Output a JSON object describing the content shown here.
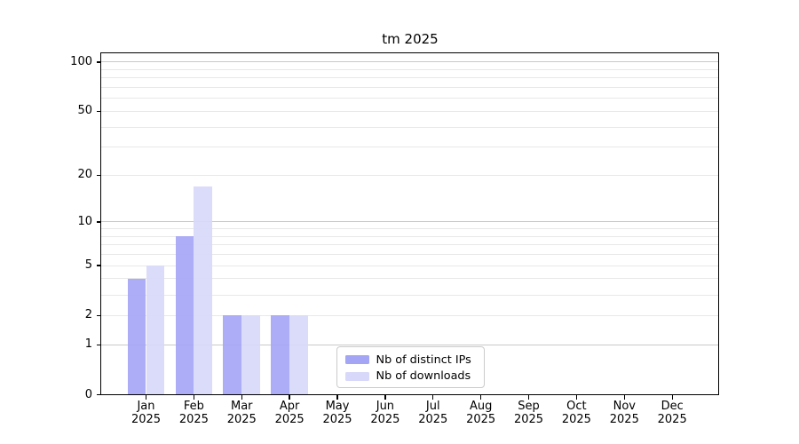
{
  "title": "tm 2025",
  "chart_data": {
    "type": "bar",
    "title": "tm 2025",
    "yscale": "log1p",
    "ylim": [
      0,
      113
    ],
    "grid": true,
    "legend_position": "lower center",
    "categories": [
      "Jan 2025",
      "Feb 2025",
      "Mar 2025",
      "Apr 2025",
      "May 2025",
      "Jun 2025",
      "Jul 2025",
      "Aug 2025",
      "Sep 2025",
      "Oct 2025",
      "Nov 2025",
      "Dec 2025"
    ],
    "yticks": [
      0,
      1,
      2,
      5,
      10,
      20,
      50,
      100
    ],
    "major_gridlines": [
      1,
      10,
      100
    ],
    "minor_gridlines": [
      2,
      3,
      4,
      5,
      6,
      7,
      8,
      9,
      20,
      30,
      40,
      50,
      60,
      70,
      80,
      90
    ],
    "series": [
      {
        "name": "Nb of distinct IPs",
        "color": "#a5a5f6",
        "values": [
          4,
          8,
          2,
          2,
          0,
          0,
          0,
          0,
          0,
          0,
          0,
          0
        ]
      },
      {
        "name": "Nb of downloads",
        "color": "#d8d8fa",
        "values": [
          5,
          17,
          2,
          2,
          0,
          0,
          0,
          0,
          0,
          0,
          0,
          0
        ]
      }
    ]
  },
  "colors": {
    "grid_major": "#c9c9c9",
    "grid_minor": "#e8e8e8",
    "spine": "#000000",
    "legend_border": "#cbcbcb",
    "bar_distinct_ips": "#a5a5f6",
    "bar_downloads": "#d8d8fa"
  }
}
